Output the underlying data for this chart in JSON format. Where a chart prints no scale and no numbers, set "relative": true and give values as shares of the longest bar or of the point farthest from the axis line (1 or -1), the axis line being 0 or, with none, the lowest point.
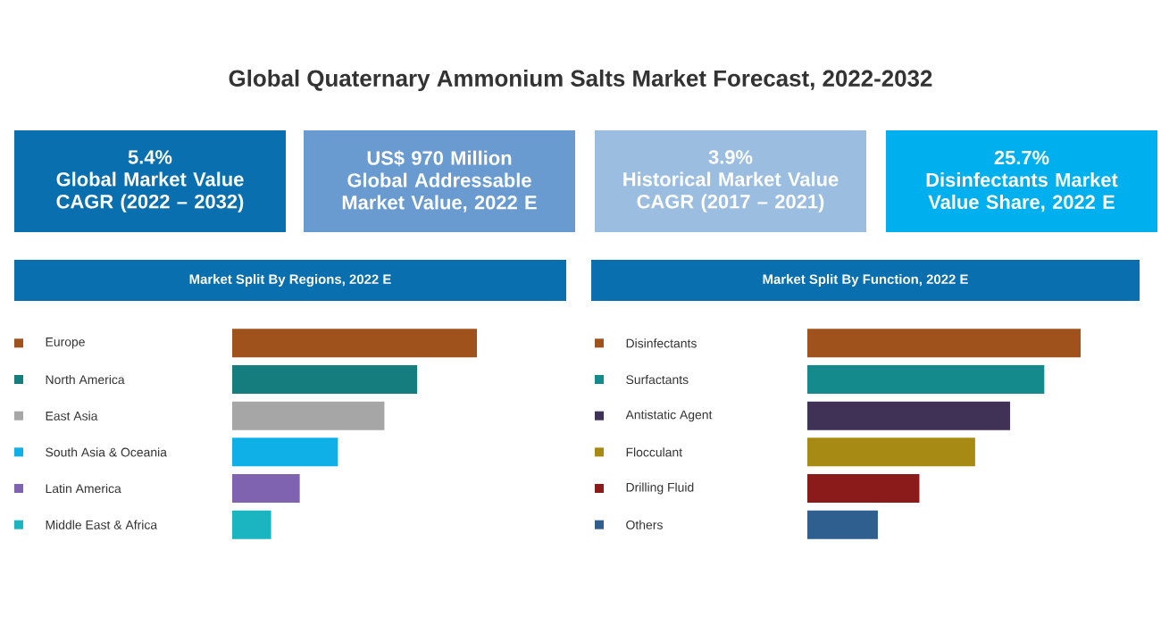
{
  "chart_data": [
    {
      "type": "other",
      "title": "Global Quaternary Ammonium Salts Market Forecast, 2022-2032",
      "annotations": [
        "5.4%",
        "Global Market Value CAGR (2022 – 2032)",
        "US$ 970 Million",
        "Global Addressable Market Value, 2022 E",
        "3.9%",
        "Historical Market Value CAGR (2017 – 2021)",
        "25.7%",
        "Disinfectants Market Value Share, 2022 E"
      ]
    },
    {
      "type": "bar",
      "orientation": "horizontal",
      "relative": true,
      "title": "Market Split By Regions, 2022 E",
      "categories": [
        "Europe",
        "North America",
        "East Asia",
        "South Asia & Oceania",
        "Latin America",
        "Middle East & Africa"
      ],
      "values": [
        1,
        0.756,
        0.622,
        0.432,
        0.276,
        0.159
      ],
      "colors": [
        "#a0521c",
        "#167d7f",
        "#a6a6a6",
        "#0fb0e8",
        "#7f63b0",
        "#1ab5c0"
      ]
    },
    {
      "type": "bar",
      "orientation": "horizontal",
      "relative": true,
      "title": "Market Split By Function, 2022 E",
      "categories": [
        "Disinfectants",
        "Surfactants",
        "Antistatic Agent",
        "Flocculant",
        "Drilling Fluid",
        "Others"
      ],
      "values": [
        1,
        0.867,
        0.742,
        0.614,
        0.41,
        0.258
      ],
      "colors": [
        "#a0521c",
        "#148a8c",
        "#3f3256",
        "#a68a14",
        "#8b1a1a",
        "#2e5f8e"
      ]
    }
  ]
}
